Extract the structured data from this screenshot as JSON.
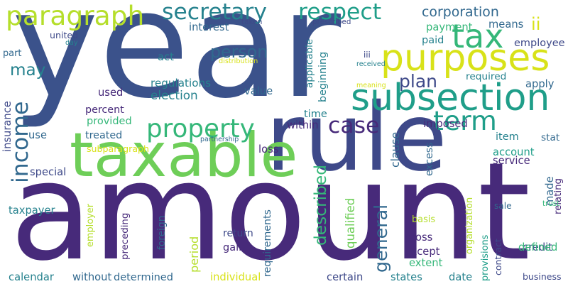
{
  "palette": {
    "dark_purple": "#472a7a",
    "indigo": "#3e4989",
    "blue": "#31688e",
    "teal": "#26828e",
    "sea_green": "#1f9e89",
    "green": "#35b779",
    "light_green": "#6ece58",
    "yellow_green": "#b5de2b",
    "yellow": "#d8e219",
    "background": "#ffffff"
  },
  "words": [
    {
      "text": "year",
      "color": "#3b528b"
    },
    {
      "text": "amount",
      "color": "#472a7a"
    },
    {
      "text": "rule",
      "color": "#3e4989"
    },
    {
      "text": "taxable",
      "color": "#6ece58"
    },
    {
      "text": "subsection",
      "color": "#1f9e89"
    },
    {
      "text": "purposes",
      "color": "#d8e219"
    },
    {
      "text": "paragraph",
      "color": "#b5de2b"
    },
    {
      "text": "secretary",
      "color": "#26828e"
    },
    {
      "text": "respect",
      "color": "#1f9e89"
    },
    {
      "text": "tax",
      "color": "#35b779"
    },
    {
      "text": "ii",
      "color": "#d8e219"
    },
    {
      "text": "property",
      "color": "#35b779"
    },
    {
      "text": "income",
      "color": "#31688e"
    },
    {
      "text": "case",
      "color": "#472a7a"
    },
    {
      "text": "term",
      "color": "#1f9e89"
    },
    {
      "text": "described",
      "color": "#35b779"
    },
    {
      "text": "general",
      "color": "#31688e"
    },
    {
      "text": "person",
      "color": "#31688e"
    },
    {
      "text": "corporation",
      "color": "#31688e"
    },
    {
      "text": "plan",
      "color": "#3e4989"
    },
    {
      "text": "may",
      "color": "#26828e"
    },
    {
      "text": "regulations",
      "color": "#26828e"
    },
    {
      "text": "election",
      "color": "#26828e"
    },
    {
      "text": "applicable",
      "color": "#26828e"
    },
    {
      "text": "beginning",
      "color": "#26828e"
    },
    {
      "text": "interest",
      "color": "#31688e"
    },
    {
      "text": "taken",
      "color": "#3e4989"
    },
    {
      "text": "prescribed",
      "color": "#3e4989"
    },
    {
      "text": "united",
      "color": "#3e4989"
    },
    {
      "text": "day",
      "color": "#26828e"
    },
    {
      "text": "part",
      "color": "#31688e"
    },
    {
      "text": "act",
      "color": "#26828e"
    },
    {
      "text": "distribution",
      "color": "#d8e219"
    },
    {
      "text": "payment",
      "color": "#35b779"
    },
    {
      "text": "paid",
      "color": "#26828e"
    },
    {
      "text": "means",
      "color": "#31688e"
    },
    {
      "text": "employee",
      "color": "#3e4989"
    },
    {
      "text": "iii",
      "color": "#3e4989"
    },
    {
      "text": "received",
      "color": "#26828e"
    },
    {
      "text": "meaning",
      "color": "#d8e219"
    },
    {
      "text": "required",
      "color": "#26828e"
    },
    {
      "text": "apply",
      "color": "#31688e"
    },
    {
      "text": "insurance",
      "color": "#3e4989"
    },
    {
      "text": "used",
      "color": "#472a7a"
    },
    {
      "text": "value",
      "color": "#31688e"
    },
    {
      "text": "percent",
      "color": "#472a7a"
    },
    {
      "text": "time",
      "color": "#26828e"
    },
    {
      "text": "provided",
      "color": "#35b779"
    },
    {
      "text": "within",
      "color": "#472a7a"
    },
    {
      "text": "imposed",
      "color": "#472a7a"
    },
    {
      "text": "use",
      "color": "#31688e"
    },
    {
      "text": "treated",
      "color": "#31688e"
    },
    {
      "text": "item",
      "color": "#26828e"
    },
    {
      "text": "stat",
      "color": "#31688e"
    },
    {
      "text": "partnership",
      "color": "#31688e"
    },
    {
      "text": "subparagraph",
      "color": "#d8e219"
    },
    {
      "text": "loss",
      "color": "#472a7a"
    },
    {
      "text": "account",
      "color": "#1f9e89"
    },
    {
      "text": "service",
      "color": "#472a7a"
    },
    {
      "text": "clause",
      "color": "#31688e"
    },
    {
      "text": "excess",
      "color": "#31688e"
    },
    {
      "text": "made",
      "color": "#31688e"
    },
    {
      "text": "relating",
      "color": "#472a7a"
    },
    {
      "text": "special",
      "color": "#3e4989"
    },
    {
      "text": "taxpayer",
      "color": "#26828e"
    },
    {
      "text": "employer",
      "color": "#b5de2b"
    },
    {
      "text": "preceding",
      "color": "#472a7a"
    },
    {
      "text": "foreign",
      "color": "#31688e"
    },
    {
      "text": "period",
      "color": "#b5de2b"
    },
    {
      "text": "requirements",
      "color": "#31688e"
    },
    {
      "text": "qualified",
      "color": "#6ece58"
    },
    {
      "text": "basis",
      "color": "#b5de2b"
    },
    {
      "text": "organization",
      "color": "#b5de2b"
    },
    {
      "text": "sale",
      "color": "#31688e"
    },
    {
      "text": "trust",
      "color": "#35b779"
    },
    {
      "text": "credit",
      "color": "#3e4989"
    },
    {
      "text": "return",
      "color": "#3e4989"
    },
    {
      "text": "gross",
      "color": "#472a7a"
    },
    {
      "text": "provisions",
      "color": "#1f9e89"
    },
    {
      "text": "contract",
      "color": "#3e4989"
    },
    {
      "text": "gain",
      "color": "#472a7a"
    },
    {
      "text": "except",
      "color": "#472a7a"
    },
    {
      "text": "defined",
      "color": "#35b779"
    },
    {
      "text": "extent",
      "color": "#35b779"
    },
    {
      "text": "calendar",
      "color": "#26828e"
    },
    {
      "text": "without",
      "color": "#31688e"
    },
    {
      "text": "determined",
      "color": "#31688e"
    },
    {
      "text": "individual",
      "color": "#d8e219"
    },
    {
      "text": "certain",
      "color": "#3e4989"
    },
    {
      "text": "states",
      "color": "#26828e"
    },
    {
      "text": "date",
      "color": "#26828e"
    },
    {
      "text": "business",
      "color": "#3e4989"
    }
  ]
}
